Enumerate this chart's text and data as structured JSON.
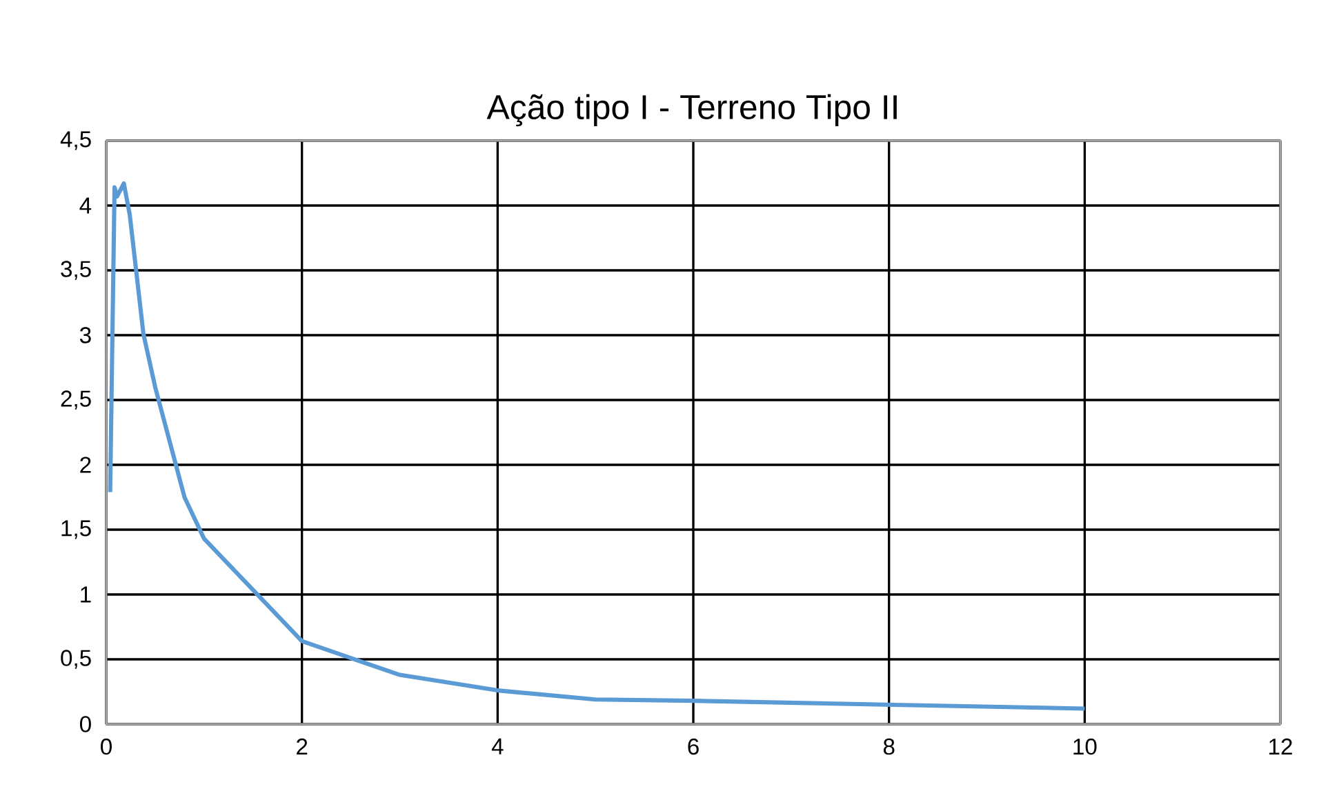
{
  "chart_data": {
    "type": "line",
    "title": "Ação tipo I - Terreno Tipo II",
    "x": [
      0.04,
      0.085,
      0.11,
      0.18,
      0.24,
      0.38,
      0.5,
      0.8,
      1,
      2,
      3,
      4,
      5,
      6,
      8,
      10
    ],
    "series": [
      {
        "color": "#5b9bd5",
        "values": [
          1.79,
          4.14,
          4.07,
          4.17,
          3.93,
          3.01,
          2.6,
          1.75,
          1.43,
          0.64,
          0.38,
          0.26,
          0.19,
          0.18,
          0.15,
          0.12
        ]
      }
    ],
    "xlim": [
      0,
      12
    ],
    "xticks": [
      0,
      2,
      4,
      6,
      8,
      10,
      12
    ],
    "ylim": [
      0,
      4.5
    ],
    "yticks": [
      0,
      {
        "value": 0.5,
        "label": "0,5"
      },
      1,
      {
        "value": 1.5,
        "label": "1,5"
      },
      2,
      {
        "value": 2.5,
        "label": "2,5"
      },
      3,
      {
        "value": 3.5,
        "label": "3,5"
      },
      4,
      {
        "value": 4.5,
        "label": "4,5"
      }
    ],
    "grid": true,
    "marker": "none",
    "line_style": "solid"
  }
}
